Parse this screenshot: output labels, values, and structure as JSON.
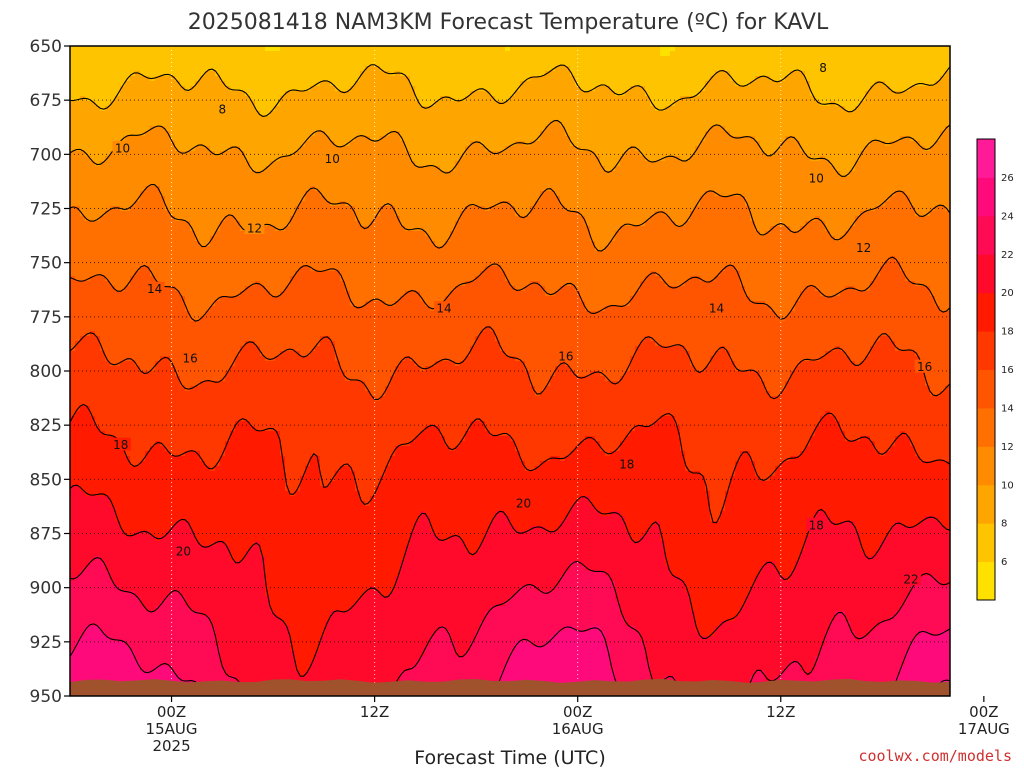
{
  "chart_data": {
    "type": "heatmap",
    "title": "2025081418 NAM3KM Forecast Temperature (ºC) for KAVL",
    "xlabel": "Forecast Time (UTC)",
    "ylabel": "",
    "y_axis": {
      "ticks": [
        650,
        675,
        700,
        725,
        750,
        775,
        800,
        825,
        850,
        875,
        900,
        925,
        950
      ],
      "range": [
        650,
        950
      ],
      "inverted": true
    },
    "x_axis": {
      "range_hours": [
        -6,
        46
      ],
      "ticks": [
        {
          "hour": 0,
          "lines": [
            "00Z",
            "15AUG",
            "2025"
          ]
        },
        {
          "hour": 12,
          "lines": [
            "12Z"
          ]
        },
        {
          "hour": 24,
          "lines": [
            "00Z",
            "16AUG"
          ]
        },
        {
          "hour": 36,
          "lines": [
            "12Z"
          ]
        },
        {
          "hour": 48,
          "lines": [
            "00Z",
            "17AUG"
          ]
        }
      ]
    },
    "grid": true,
    "colorbar": {
      "placement": "right",
      "levels": [
        4,
        6,
        8,
        10,
        12,
        14,
        16,
        18,
        20,
        22,
        24,
        26,
        28
      ],
      "tick_labels": [
        6,
        8,
        10,
        12,
        14,
        16,
        18,
        20,
        22,
        24,
        26
      ],
      "colors": [
        "#ffe100",
        "#ffc400",
        "#ffa500",
        "#ff8c00",
        "#ff7000",
        "#ff5500",
        "#ff3800",
        "#ff1a00",
        "#ff0a2a",
        "#ff0a55",
        "#ff0a7a",
        "#ff1a98"
      ]
    },
    "contour_labels": [
      {
        "value": 8,
        "hour": 3,
        "pressure": 679
      },
      {
        "value": 8,
        "hour": 38.5,
        "pressure": 660
      },
      {
        "value": 10,
        "hour": -2.9,
        "pressure": 697
      },
      {
        "value": 10,
        "hour": 9.5,
        "pressure": 702
      },
      {
        "value": 10,
        "hour": 38.1,
        "pressure": 711
      },
      {
        "value": 12,
        "hour": 4.9,
        "pressure": 734
      },
      {
        "value": 12,
        "hour": 40.9,
        "pressure": 743
      },
      {
        "value": 14,
        "hour": -1,
        "pressure": 762
      },
      {
        "value": 14,
        "hour": 16.1,
        "pressure": 771
      },
      {
        "value": 14,
        "hour": 32.2,
        "pressure": 771
      },
      {
        "value": 16,
        "hour": 1.1,
        "pressure": 794
      },
      {
        "value": 16,
        "hour": 23.3,
        "pressure": 793
      },
      {
        "value": 16,
        "hour": 44.5,
        "pressure": 798
      },
      {
        "value": 18,
        "hour": -3,
        "pressure": 834
      },
      {
        "value": 18,
        "hour": 26.9,
        "pressure": 843
      },
      {
        "value": 18,
        "hour": 38.1,
        "pressure": 871
      },
      {
        "value": 20,
        "hour": 0.7,
        "pressure": 883
      },
      {
        "value": 20,
        "hour": 20.8,
        "pressure": 861
      },
      {
        "value": 22,
        "hour": 43.7,
        "pressure": 896
      }
    ],
    "surface_terrain": {
      "color": "#a0522d",
      "pressure_top": 943
    }
  },
  "credit": "coolwx.com/models"
}
